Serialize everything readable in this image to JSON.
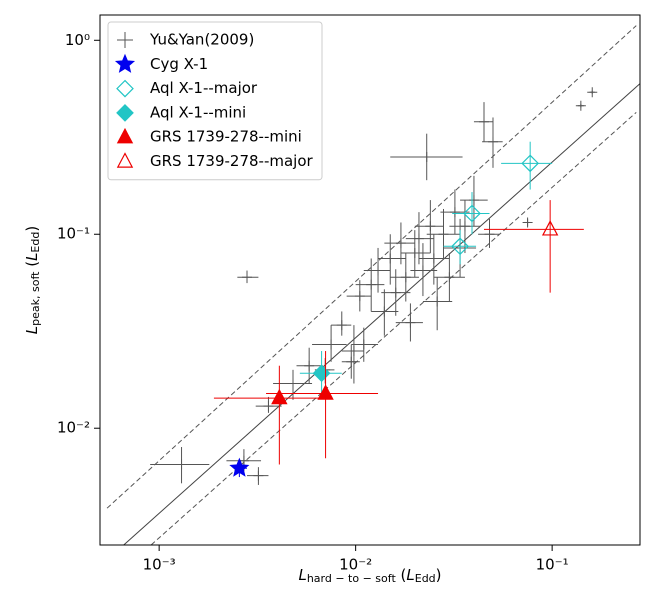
{
  "chart_data": {
    "type": "scatter",
    "xlabel": {
      "symbol": "L",
      "subscript": "hard − to − soft",
      "unit": "L",
      "unit_subscript": "Edd"
    },
    "ylabel": {
      "symbol": "L",
      "subscript": "peak, soft",
      "unit": "L",
      "unit_subscript": "Edd"
    },
    "log_x": true,
    "log_y": true,
    "xlim": [
      0.0005,
      0.28
    ],
    "ylim": [
      0.0025,
      1.35
    ],
    "xticks": [
      {
        "value": 0.001,
        "label": "10⁻³"
      },
      {
        "value": 0.01,
        "label": "10⁻²"
      },
      {
        "value": 0.1,
        "label": "10⁻¹"
      }
    ],
    "yticks": [
      {
        "value": 0.01,
        "label": "10⁻²"
      },
      {
        "value": 0.1,
        "label": "10⁻¹"
      },
      {
        "value": 1,
        "label": "10⁰"
      }
    ],
    "legend": "upper left",
    "reference_lines": [
      {
        "style": "solid",
        "color": "#444444",
        "x": [
          0.00066,
          0.281
        ],
        "y": [
          0.0025,
          0.6
        ]
      },
      {
        "style": "dashed",
        "color": "#555555",
        "x": [
          0.000543,
          0.268
        ],
        "y": [
          0.00387,
          1.19
        ]
      },
      {
        "style": "dashed",
        "color": "#555555",
        "x": [
          0.00091,
          0.268
        ],
        "y": [
          0.0025,
          0.425
        ]
      }
    ],
    "series": [
      {
        "name": "Yu&Yan(2009)",
        "color": "#555555",
        "marker": "plus",
        "x": [
          0.0013,
          0.0028,
          0.0027,
          0.0032,
          0.0036,
          0.0048,
          0.0058,
          0.0075,
          0.0085,
          0.0098,
          0.0105,
          0.011,
          0.012,
          0.013,
          0.014,
          0.015,
          0.016,
          0.017,
          0.018,
          0.019,
          0.02,
          0.021,
          0.022,
          0.023,
          0.024,
          0.025,
          0.026,
          0.028,
          0.03,
          0.032,
          0.034,
          0.036,
          0.04,
          0.045,
          0.05,
          0.048,
          0.075,
          0.14,
          0.16,
          0.0095,
          0.007
        ],
        "y": [
          0.0065,
          0.06,
          0.0068,
          0.0057,
          0.013,
          0.017,
          0.021,
          0.027,
          0.034,
          0.025,
          0.048,
          0.027,
          0.055,
          0.065,
          0.04,
          0.075,
          0.05,
          0.09,
          0.06,
          0.035,
          0.08,
          0.095,
          0.065,
          0.25,
          0.11,
          0.075,
          0.045,
          0.1,
          0.06,
          0.13,
          0.085,
          0.11,
          0.15,
          0.38,
          0.3,
          0.1,
          0.115,
          0.46,
          0.54,
          0.022,
          0.02
        ],
        "x_range": [
          [
            0.0009,
            0.0018
          ],
          [
            0.0025,
            0.0032
          ],
          [
            0.0022,
            0.0033
          ],
          [
            0.0028,
            0.0036
          ],
          [
            0.0031,
            0.0042
          ],
          [
            0.0038,
            0.006
          ],
          [
            0.005,
            0.0068
          ],
          [
            0.006,
            0.009
          ],
          [
            0.0075,
            0.0095
          ],
          [
            0.0085,
            0.011
          ],
          [
            0.009,
            0.012
          ],
          [
            0.0095,
            0.013
          ],
          [
            0.01,
            0.014
          ],
          [
            0.011,
            0.015
          ],
          [
            0.012,
            0.0165
          ],
          [
            0.013,
            0.018
          ],
          [
            0.0135,
            0.019
          ],
          [
            0.014,
            0.02
          ],
          [
            0.015,
            0.021
          ],
          [
            0.016,
            0.022
          ],
          [
            0.017,
            0.024
          ],
          [
            0.018,
            0.025
          ],
          [
            0.019,
            0.026
          ],
          [
            0.015,
            0.035
          ],
          [
            0.02,
            0.028
          ],
          [
            0.021,
            0.03
          ],
          [
            0.022,
            0.031
          ],
          [
            0.023,
            0.034
          ],
          [
            0.025,
            0.036
          ],
          [
            0.027,
            0.038
          ],
          [
            0.028,
            0.041
          ],
          [
            0.03,
            0.043
          ],
          [
            0.034,
            0.047
          ],
          [
            0.04,
            0.05
          ],
          [
            0.044,
            0.056
          ],
          [
            0.042,
            0.054
          ],
          [
            0.072,
            0.078
          ],
          [
            0.135,
            0.145
          ],
          [
            0.155,
            0.165
          ],
          [
            0.0085,
            0.0105
          ],
          [
            0.0062,
            0.0078
          ]
        ],
        "y_range": [
          [
            0.0052,
            0.008
          ],
          [
            0.056,
            0.065
          ],
          [
            0.006,
            0.0078
          ],
          [
            0.0051,
            0.0063
          ],
          [
            0.012,
            0.0145
          ],
          [
            0.014,
            0.02
          ],
          [
            0.017,
            0.026
          ],
          [
            0.022,
            0.034
          ],
          [
            0.03,
            0.04
          ],
          [
            0.017,
            0.034
          ],
          [
            0.04,
            0.058
          ],
          [
            0.022,
            0.033
          ],
          [
            0.04,
            0.075
          ],
          [
            0.05,
            0.085
          ],
          [
            0.03,
            0.052
          ],
          [
            0.055,
            0.1
          ],
          [
            0.038,
            0.066
          ],
          [
            0.07,
            0.115
          ],
          [
            0.045,
            0.08
          ],
          [
            0.028,
            0.044
          ],
          [
            0.06,
            0.105
          ],
          [
            0.07,
            0.13
          ],
          [
            0.048,
            0.09
          ],
          [
            0.19,
            0.33
          ],
          [
            0.08,
            0.15
          ],
          [
            0.055,
            0.1
          ],
          [
            0.032,
            0.06
          ],
          [
            0.075,
            0.135
          ],
          [
            0.045,
            0.08
          ],
          [
            0.1,
            0.17
          ],
          [
            0.06,
            0.12
          ],
          [
            0.08,
            0.15
          ],
          [
            0.11,
            0.2
          ],
          [
            0.3,
            0.48
          ],
          [
            0.22,
            0.4
          ],
          [
            0.085,
            0.12
          ],
          [
            0.11,
            0.12
          ],
          [
            0.45,
            0.47
          ],
          [
            0.53,
            0.55
          ],
          [
            0.018,
            0.027
          ],
          [
            0.017,
            0.023
          ]
        ]
      },
      {
        "name": "Cyg X-1",
        "color": "#0000ee",
        "marker": "star",
        "x": [
          0.00256
        ],
        "y": [
          0.00622
        ],
        "x_range": [
          [
            0.0024,
            0.0028
          ]
        ],
        "y_range": [
          [
            0.0056,
            0.0068
          ]
        ]
      },
      {
        "name": "Aql X-1--major",
        "color": "#22c5c5",
        "marker": "diamond-open",
        "x": [
          0.0391,
          0.034,
          0.0773
        ],
        "y": [
          0.128,
          0.0867,
          0.232
        ],
        "x_range": [
          [
            0.031,
            0.048
          ],
          [
            0.028,
            0.041
          ],
          [
            0.055,
            0.1
          ]
        ],
        "y_range": [
          [
            0.1,
            0.165
          ],
          [
            0.07,
            0.105
          ],
          [
            0.17,
            0.3
          ]
        ]
      },
      {
        "name": "Aql X-1--mini",
        "color": "#22c5c5",
        "marker": "diamond",
        "x": [
          0.00671
        ],
        "y": [
          0.0192
        ],
        "x_range": [
          [
            0.0052,
            0.0085
          ]
        ],
        "y_range": [
          [
            0.015,
            0.025
          ]
        ]
      },
      {
        "name": "GRS 1739-278--mini",
        "color": "#ee0000",
        "marker": "triangle",
        "x": [
          0.00409,
          0.00703
        ],
        "y": [
          0.0143,
          0.0151
        ],
        "x_range": [
          [
            0.0019,
            0.0065
          ],
          [
            0.0035,
            0.013
          ]
        ],
        "y_range": [
          [
            0.0065,
            0.021
          ],
          [
            0.007,
            0.025
          ]
        ]
      },
      {
        "name": "GRS 1739-278--major",
        "color": "#ee0000",
        "marker": "triangle-open",
        "x": [
          0.0977
        ],
        "y": [
          0.106
        ],
        "x_range": [
          [
            0.045,
            0.145
          ]
        ],
        "y_range": [
          [
            0.05,
            0.15
          ]
        ]
      }
    ]
  }
}
